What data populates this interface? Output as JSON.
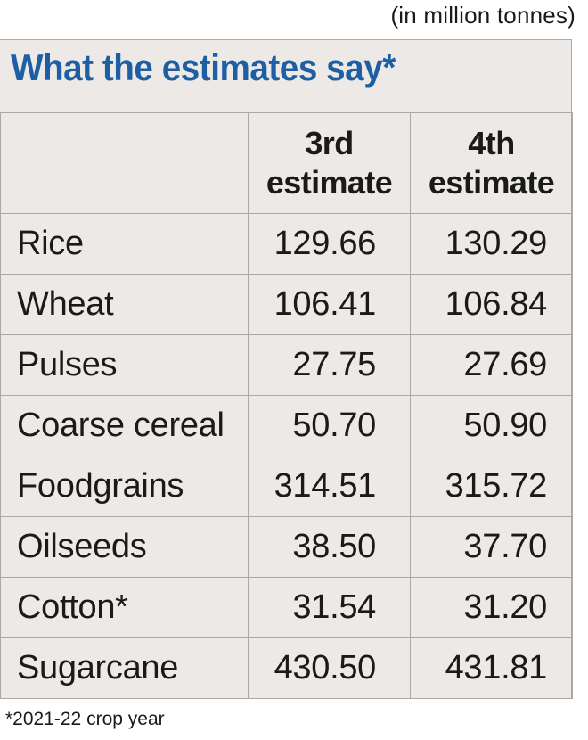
{
  "unit_note": "(in million tonnes)",
  "title": "What the estimates say*",
  "footnote": "*2021-22 crop year",
  "chart_data": {
    "type": "table",
    "title": "What the estimates say*",
    "unit": "(in million tonnes)",
    "columns": [
      {
        "line1": "3rd",
        "line2": "estimate"
      },
      {
        "line1": "4th",
        "line2": "estimate"
      }
    ],
    "rows": [
      {
        "label": "Rice",
        "values": [
          "129.66",
          "130.29"
        ]
      },
      {
        "label": "Wheat",
        "values": [
          "106.41",
          "106.84"
        ]
      },
      {
        "label": "Pulses",
        "values": [
          "27.75",
          "27.69"
        ]
      },
      {
        "label": "Coarse cereal",
        "values": [
          "50.70",
          "50.90"
        ]
      },
      {
        "label": "Foodgrains",
        "values": [
          "314.51",
          "315.72"
        ]
      },
      {
        "label": "Oilseeds",
        "values": [
          "38.50",
          "37.70"
        ]
      },
      {
        "label": "Cotton*",
        "values": [
          "31.54",
          "31.20"
        ]
      },
      {
        "label": "Sugarcane",
        "values": [
          "430.50",
          "431.81"
        ]
      }
    ],
    "footnote": "*2021-22 crop year"
  },
  "colors": {
    "title": "#1e5fa3",
    "background": "#ece9e6",
    "border": "#a9a9a9",
    "text": "#1a1a1a"
  }
}
